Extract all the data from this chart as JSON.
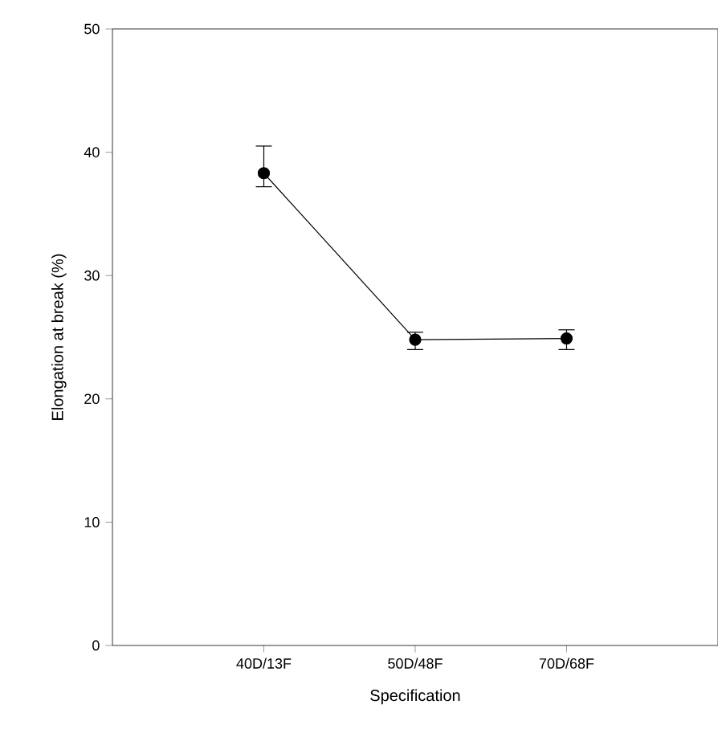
{
  "chart_data": {
    "type": "line",
    "xlabel": "Specification",
    "ylabel": "Elongation at break (%)",
    "categories": [
      "40D/13F",
      "50D/48F",
      "70D/68F"
    ],
    "values": [
      38.3,
      24.8,
      24.9
    ],
    "errors": [
      [
        37.2,
        40.5
      ],
      [
        24.0,
        25.4
      ],
      [
        24.0,
        25.6
      ]
    ],
    "color": "#000000",
    "marker": "circle",
    "line_style": "solid",
    "ylim": [
      0,
      50
    ],
    "yticks": [
      0,
      10,
      20,
      30,
      40,
      50
    ],
    "grid": false
  }
}
